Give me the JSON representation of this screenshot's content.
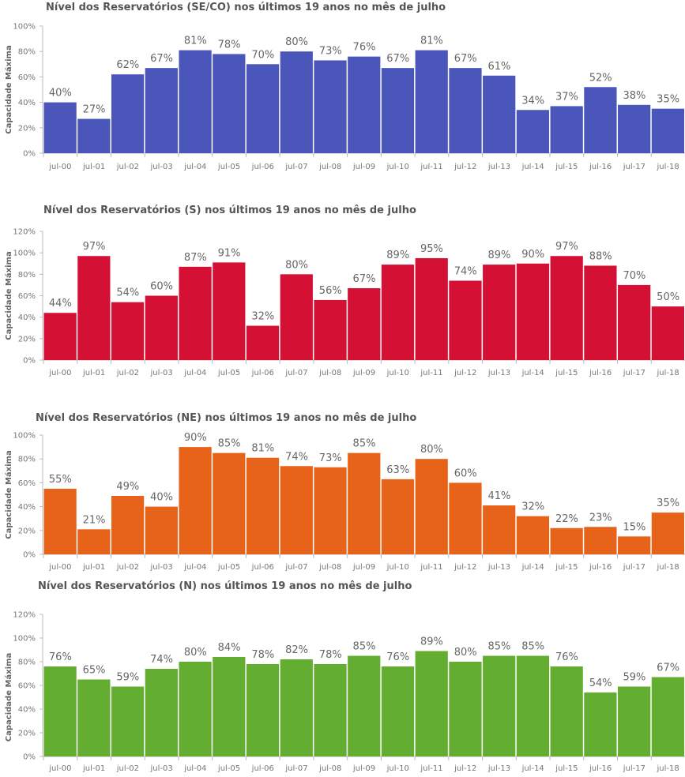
{
  "chart_data": [
    {
      "type": "bar",
      "title": "Nível dos Reservatórios (SE/CO) nos últimos 19 anos no mês de julho",
      "ylabel": "Capacidade Máxima",
      "categories": [
        "jul-00",
        "jul-01",
        "jul-02",
        "jul-03",
        "jul-04",
        "jul-05",
        "jul-06",
        "jul-07",
        "jul-08",
        "jul-09",
        "jul-10",
        "jul-11",
        "jul-12",
        "jul-13",
        "jul-14",
        "jul-15",
        "jul-16",
        "jul-17",
        "jul-18"
      ],
      "values": [
        40,
        27,
        62,
        67,
        81,
        78,
        70,
        80,
        73,
        76,
        67,
        81,
        67,
        61,
        34,
        37,
        52,
        38,
        35
      ],
      "yticks": [
        "0%",
        "20%",
        "40%",
        "60%",
        "80%",
        "100%"
      ],
      "ylim": [
        0,
        100
      ],
      "color": "#4b56bb",
      "grid": false
    },
    {
      "type": "bar",
      "title": "Nível dos Reservatórios (S) nos últimos 19 anos no mês de julho",
      "ylabel": "Capacidade Máxima",
      "categories": [
        "jul-00",
        "jul-01",
        "jul-02",
        "jul-03",
        "jul-04",
        "jul-05",
        "jul-06",
        "jul-07",
        "jul-08",
        "jul-09",
        "jul-10",
        "jul-11",
        "jul-12",
        "jul-13",
        "jul-14",
        "jul-15",
        "jul-16",
        "jul-17",
        "jul-18"
      ],
      "values": [
        44,
        97,
        54,
        60,
        87,
        91,
        32,
        80,
        56,
        67,
        89,
        95,
        74,
        89,
        90,
        97,
        88,
        70,
        50
      ],
      "yticks": [
        "0%",
        "20%",
        "40%",
        "60%",
        "80%",
        "100%",
        "120%"
      ],
      "ylim": [
        0,
        120
      ],
      "color": "#d41034",
      "grid": false
    },
    {
      "type": "bar",
      "title": "Nível dos Reservatórios (NE) nos últimos 19 anos no mês de julho",
      "ylabel": "Capacidade Máxima",
      "categories": [
        "jul-00",
        "jul-01",
        "jul-02",
        "jul-03",
        "jul-04",
        "jul-05",
        "jul-06",
        "jul-07",
        "jul-08",
        "jul-09",
        "jul-10",
        "jul-11",
        "jul-12",
        "jul-13",
        "jul-14",
        "jul-15",
        "jul-16",
        "jul-17",
        "jul-18"
      ],
      "values": [
        55,
        21,
        49,
        40,
        90,
        85,
        81,
        74,
        73,
        85,
        63,
        80,
        60,
        41,
        32,
        22,
        23,
        15,
        35
      ],
      "yticks": [
        "0%",
        "20%",
        "40%",
        "60%",
        "80%",
        "100%"
      ],
      "ylim": [
        0,
        100
      ],
      "color": "#e8631a",
      "grid": false
    },
    {
      "type": "bar",
      "title": "Nível dos Reservatórios (N) nos últimos 19 anos no mês de julho",
      "ylabel": "Capacidade Máxima",
      "categories": [
        "jul-00",
        "jul-01",
        "jul-02",
        "jul-03",
        "jul-04",
        "jul-05",
        "jul-06",
        "jul-07",
        "jul-08",
        "jul-09",
        "jul-10",
        "jul-11",
        "jul-12",
        "jul-13",
        "jul-14",
        "jul-15",
        "jul-16",
        "jul-17",
        "jul-18"
      ],
      "values": [
        76,
        65,
        59,
        74,
        80,
        84,
        78,
        82,
        78,
        85,
        76,
        89,
        80,
        85,
        85,
        76,
        54,
        59,
        67
      ],
      "yticks": [
        "0%",
        "20%",
        "40%",
        "60%",
        "80%",
        "100%",
        "120%"
      ],
      "ylim": [
        0,
        100
      ],
      "color": "#63ad31",
      "grid": false
    }
  ]
}
